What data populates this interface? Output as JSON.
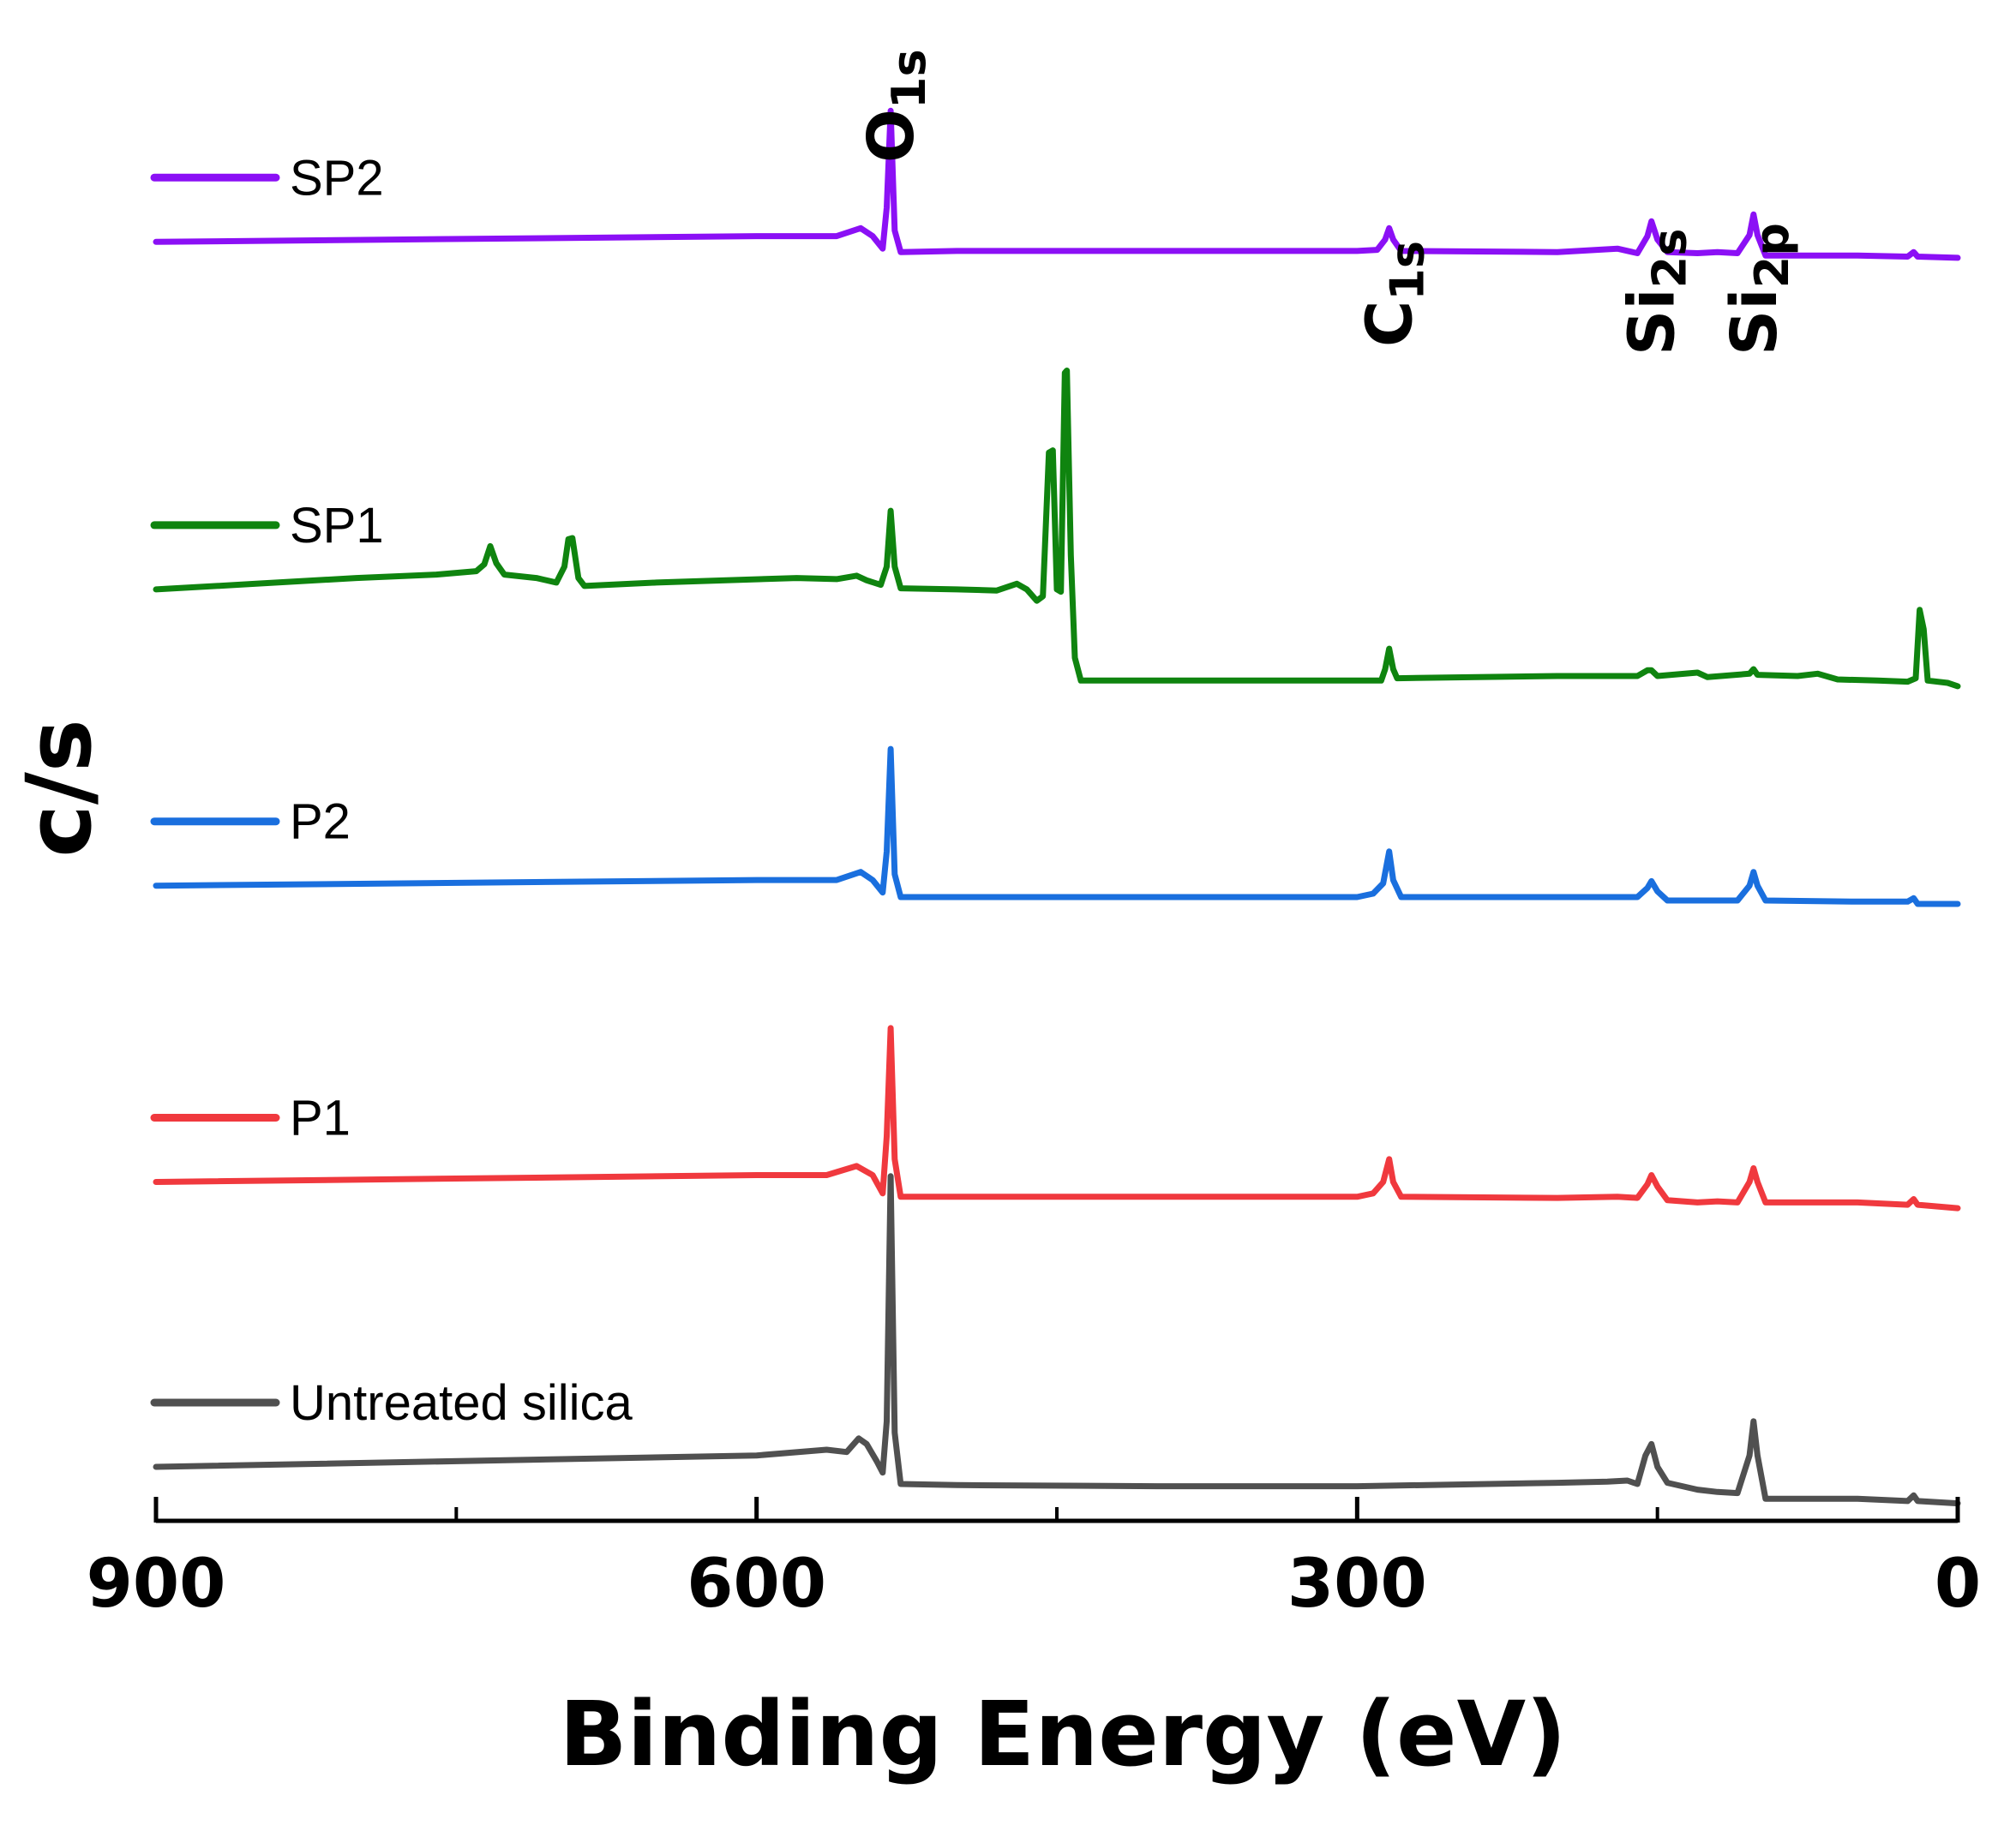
{
  "chart_data": {
    "type": "line",
    "title": "",
    "xlabel": "Binding Energy (eV)",
    "ylabel": "c/s",
    "xlim": [
      900,
      0
    ],
    "x_reversed": true,
    "x_ticks": [
      900,
      600,
      300,
      0
    ],
    "y_ticks_shown": false,
    "grid": false,
    "legend_position": "left, each entry beside its trace",
    "peak_labels": [
      {
        "main": "O",
        "sub": "1s",
        "x": 533
      },
      {
        "main": "C",
        "sub": "1s",
        "x": 284
      },
      {
        "main": "Si",
        "sub": "2s",
        "x": 153
      },
      {
        "main": "Si",
        "sub": "2p",
        "x": 102
      }
    ],
    "series": [
      {
        "name": "SP2",
        "color": "#8B10F5",
        "baseline": 10.75,
        "points": [
          [
            900,
            0.0
          ],
          [
            600,
            0.05
          ],
          [
            560,
            0.05
          ],
          [
            548,
            0.12
          ],
          [
            542,
            0.05
          ],
          [
            537,
            -0.06
          ],
          [
            535,
            0.3
          ],
          [
            533,
            1.15
          ],
          [
            531,
            0.1
          ],
          [
            528,
            -0.09
          ],
          [
            500,
            -0.08
          ],
          [
            400,
            -0.08
          ],
          [
            300,
            -0.08
          ],
          [
            290,
            -0.07
          ],
          [
            286,
            0.02
          ],
          [
            284,
            0.12
          ],
          [
            282,
            0.02
          ],
          [
            278,
            -0.08
          ],
          [
            200,
            -0.09
          ],
          [
            170,
            -0.06
          ],
          [
            160,
            -0.1
          ],
          [
            155,
            0.05
          ],
          [
            153,
            0.18
          ],
          [
            150,
            0.02
          ],
          [
            145,
            -0.09
          ],
          [
            130,
            -0.1
          ],
          [
            120,
            -0.09
          ],
          [
            110,
            -0.1
          ],
          [
            104,
            0.06
          ],
          [
            102,
            0.24
          ],
          [
            100,
            0.06
          ],
          [
            96,
            -0.12
          ],
          [
            50,
            -0.12
          ],
          [
            25,
            -0.13
          ],
          [
            22,
            -0.09
          ],
          [
            20,
            -0.13
          ],
          [
            0,
            -0.14
          ]
        ]
      },
      {
        "name": "SP1",
        "color": "#0F840F",
        "baseline": 7.7,
        "points": [
          [
            900,
            0.0
          ],
          [
            850,
            0.05
          ],
          [
            800,
            0.1
          ],
          [
            760,
            0.13
          ],
          [
            740,
            0.16
          ],
          [
            736,
            0.22
          ],
          [
            733,
            0.38
          ],
          [
            730,
            0.23
          ],
          [
            726,
            0.13
          ],
          [
            710,
            0.1
          ],
          [
            700,
            0.06
          ],
          [
            696,
            0.2
          ],
          [
            694,
            0.44
          ],
          [
            692,
            0.45
          ],
          [
            689,
            0.1
          ],
          [
            686,
            0.03
          ],
          [
            650,
            0.06
          ],
          [
            580,
            0.1
          ],
          [
            560,
            0.09
          ],
          [
            550,
            0.12
          ],
          [
            545,
            0.08
          ],
          [
            538,
            0.04
          ],
          [
            535,
            0.2
          ],
          [
            533,
            0.69
          ],
          [
            531,
            0.2
          ],
          [
            528,
            0.01
          ],
          [
            500,
            0.0
          ],
          [
            480,
            -0.01
          ],
          [
            470,
            0.05
          ],
          [
            465,
            0.0
          ],
          [
            460,
            -0.1
          ],
          [
            457,
            -0.06
          ],
          [
            454,
            1.2
          ],
          [
            452,
            1.22
          ],
          [
            450,
            0.0
          ],
          [
            448,
            -0.02
          ],
          [
            446,
            1.9
          ],
          [
            445,
            1.92
          ],
          [
            443,
            0.3
          ],
          [
            441,
            -0.6
          ],
          [
            438,
            -0.8
          ],
          [
            420,
            -0.8
          ],
          [
            400,
            -0.8
          ],
          [
            300,
            -0.8
          ],
          [
            288,
            -0.8
          ],
          [
            286,
            -0.7
          ],
          [
            284,
            -0.52
          ],
          [
            282,
            -0.7
          ],
          [
            280,
            -0.78
          ],
          [
            200,
            -0.76
          ],
          [
            160,
            -0.76
          ],
          [
            155,
            -0.71
          ],
          [
            153,
            -0.71
          ],
          [
            150,
            -0.76
          ],
          [
            130,
            -0.73
          ],
          [
            125,
            -0.77
          ],
          [
            104,
            -0.74
          ],
          [
            102,
            -0.7
          ],
          [
            100,
            -0.75
          ],
          [
            80,
            -0.76
          ],
          [
            70,
            -0.74
          ],
          [
            60,
            -0.79
          ],
          [
            40,
            -0.8
          ],
          [
            25,
            -0.81
          ],
          [
            21,
            -0.78
          ],
          [
            19,
            -0.18
          ],
          [
            17,
            -0.35
          ],
          [
            15,
            -0.8
          ],
          [
            5,
            -0.82
          ],
          [
            0,
            -0.85
          ]
        ]
      },
      {
        "name": "P2",
        "color": "#1A6FDE",
        "baseline": 5.1,
        "points": [
          [
            900,
            0.0
          ],
          [
            600,
            0.05
          ],
          [
            560,
            0.05
          ],
          [
            548,
            0.12
          ],
          [
            542,
            0.05
          ],
          [
            537,
            -0.06
          ],
          [
            535,
            0.3
          ],
          [
            533,
            1.2
          ],
          [
            531,
            0.1
          ],
          [
            528,
            -0.1
          ],
          [
            500,
            -0.1
          ],
          [
            400,
            -0.1
          ],
          [
            300,
            -0.1
          ],
          [
            292,
            -0.07
          ],
          [
            287,
            0.02
          ],
          [
            284,
            0.3
          ],
          [
            282,
            0.05
          ],
          [
            278,
            -0.1
          ],
          [
            200,
            -0.1
          ],
          [
            160,
            -0.1
          ],
          [
            155,
            -0.02
          ],
          [
            153,
            0.04
          ],
          [
            150,
            -0.05
          ],
          [
            145,
            -0.13
          ],
          [
            110,
            -0.13
          ],
          [
            104,
            0.0
          ],
          [
            102,
            0.12
          ],
          [
            100,
            0.0
          ],
          [
            96,
            -0.13
          ],
          [
            50,
            -0.14
          ],
          [
            25,
            -0.14
          ],
          [
            22,
            -0.11
          ],
          [
            20,
            -0.16
          ],
          [
            0,
            -0.16
          ]
        ]
      },
      {
        "name": "P1",
        "color": "#F0393E",
        "baseline": 2.5,
        "points": [
          [
            900,
            0.0
          ],
          [
            600,
            0.06
          ],
          [
            565,
            0.06
          ],
          [
            550,
            0.14
          ],
          [
            542,
            0.06
          ],
          [
            537,
            -0.1
          ],
          [
            535,
            0.4
          ],
          [
            533,
            1.35
          ],
          [
            531,
            0.2
          ],
          [
            528,
            -0.13
          ],
          [
            500,
            -0.13
          ],
          [
            400,
            -0.13
          ],
          [
            300,
            -0.13
          ],
          [
            292,
            -0.1
          ],
          [
            287,
            0.0
          ],
          [
            284,
            0.2
          ],
          [
            282,
            0.0
          ],
          [
            278,
            -0.13
          ],
          [
            200,
            -0.14
          ],
          [
            170,
            -0.13
          ],
          [
            160,
            -0.14
          ],
          [
            155,
            -0.02
          ],
          [
            153,
            0.06
          ],
          [
            150,
            -0.04
          ],
          [
            145,
            -0.16
          ],
          [
            130,
            -0.18
          ],
          [
            120,
            -0.17
          ],
          [
            110,
            -0.18
          ],
          [
            104,
            0.0
          ],
          [
            102,
            0.12
          ],
          [
            100,
            0.0
          ],
          [
            96,
            -0.18
          ],
          [
            50,
            -0.18
          ],
          [
            25,
            -0.2
          ],
          [
            22,
            -0.15
          ],
          [
            20,
            -0.2
          ],
          [
            0,
            -0.23
          ]
        ]
      },
      {
        "name": "Untreated silica",
        "color": "#505050",
        "baseline": 0.0,
        "points": [
          [
            900,
            0.0
          ],
          [
            600,
            0.1
          ],
          [
            565,
            0.15
          ],
          [
            555,
            0.13
          ],
          [
            549,
            0.25
          ],
          [
            545,
            0.2
          ],
          [
            540,
            0.05
          ],
          [
            537,
            -0.05
          ],
          [
            535,
            0.4
          ],
          [
            533,
            2.55
          ],
          [
            531,
            0.3
          ],
          [
            528,
            -0.15
          ],
          [
            500,
            -0.16
          ],
          [
            400,
            -0.17
          ],
          [
            300,
            -0.17
          ],
          [
            200,
            -0.14
          ],
          [
            175,
            -0.13
          ],
          [
            165,
            -0.12
          ],
          [
            160,
            -0.15
          ],
          [
            156,
            0.1
          ],
          [
            153,
            0.2
          ],
          [
            150,
            0.0
          ],
          [
            145,
            -0.14
          ],
          [
            130,
            -0.2
          ],
          [
            120,
            -0.22
          ],
          [
            110,
            -0.23
          ],
          [
            104,
            0.1
          ],
          [
            102,
            0.4
          ],
          [
            100,
            0.1
          ],
          [
            96,
            -0.28
          ],
          [
            50,
            -0.28
          ],
          [
            25,
            -0.3
          ],
          [
            22,
            -0.25
          ],
          [
            20,
            -0.3
          ],
          [
            0,
            -0.32
          ]
        ]
      }
    ]
  }
}
